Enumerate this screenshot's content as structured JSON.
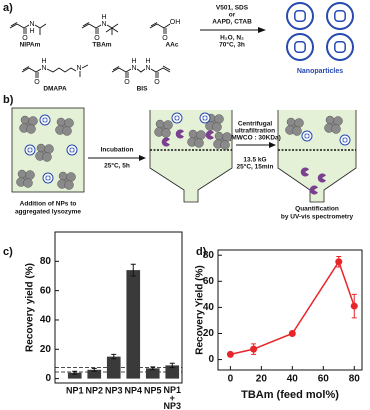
{
  "panel_labels": [
    "a)",
    "b)",
    "c)",
    "d)"
  ],
  "structures": [
    {
      "name": "NIPAm",
      "atoms": [
        "O",
        "N",
        "H"
      ]
    },
    {
      "name": "TBAm",
      "atoms": [
        "O",
        "N",
        "H"
      ]
    },
    {
      "name": "AAc",
      "atoms": [
        "O",
        "OH"
      ]
    },
    {
      "name": "DMAPA",
      "atoms": [
        "O",
        "N",
        "H",
        "N"
      ]
    },
    {
      "name": "BIS",
      "atoms": [
        "O",
        "N",
        "H",
        "N",
        "H",
        "O"
      ]
    }
  ],
  "reaction": {
    "conditions_above": [
      "V501, SDS",
      "or",
      "AAPD, CTAB"
    ],
    "conditions_below": [
      "H₂O, N₂",
      "70°C, 3h"
    ],
    "product": "Nanoparticles"
  },
  "scheme": {
    "step1": [
      "Incubation",
      "25°C, 5h"
    ],
    "step2_above": [
      "Centrifugal",
      "ultrafiltration",
      "(MWCO : 30KDa)"
    ],
    "step2_below": [
      "13.5 kG",
      "25°C, 15min"
    ],
    "start": [
      "Addition of NPs to",
      "aggregated lysozyme"
    ],
    "end": [
      "Quantification",
      "by UV-vis spectrometry"
    ]
  },
  "chart_data": [
    {
      "type": "bar",
      "ylabel": "Recovery yield (%)",
      "categories": [
        "NP1",
        "NP2",
        "NP3",
        "NP4",
        "NP5",
        "NP1 + NP3"
      ],
      "values": [
        4,
        6,
        15,
        74,
        7,
        9
      ],
      "errors": [
        1,
        1,
        1.5,
        4,
        1,
        1.5
      ],
      "color": "#3a3a3a",
      "reference_lines": [
        4.5,
        7.5
      ],
      "ylim": [
        -3,
        100
      ],
      "yticks": [
        0,
        20,
        40,
        60,
        80
      ]
    },
    {
      "type": "line",
      "xlabel": "TBAm (feed mol%)",
      "ylabel": "Recovery Yield (%)",
      "x": [
        0,
        15,
        40,
        70,
        80
      ],
      "values": [
        4,
        8,
        20,
        75,
        41
      ],
      "errors": [
        1,
        4,
        1,
        4,
        9
      ],
      "color": "#e8262a",
      "xlim": [
        -8,
        85
      ],
      "xticks": [
        0,
        20,
        40,
        60,
        80
      ],
      "ylim": [
        -8,
        84
      ],
      "yticks": [
        0,
        20,
        40,
        60,
        80
      ]
    }
  ]
}
